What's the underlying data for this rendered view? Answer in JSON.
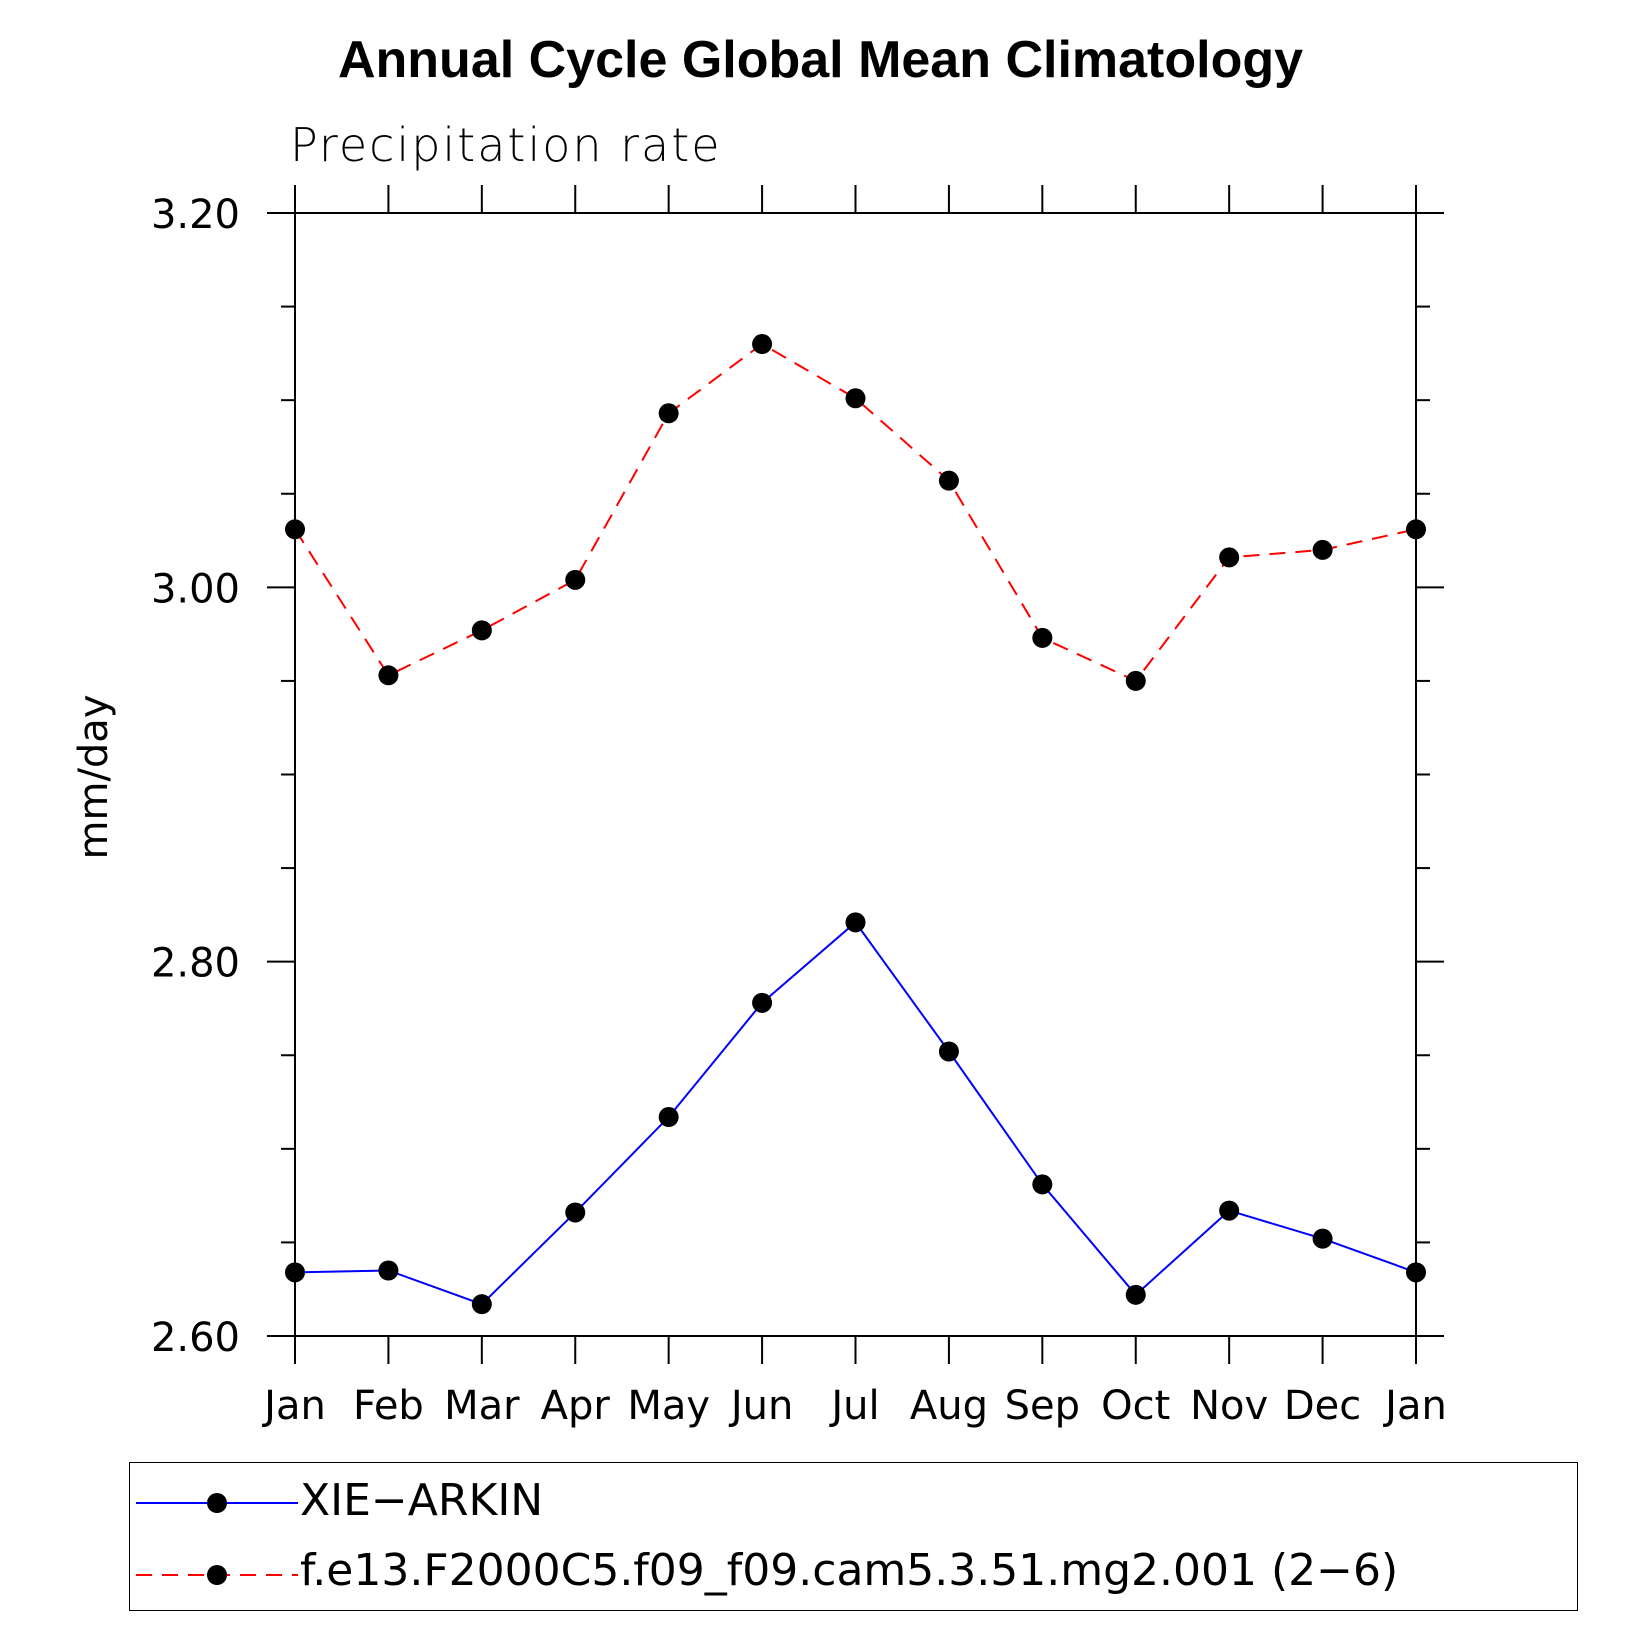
{
  "chart_data": {
    "type": "line",
    "title": "Annual Cycle Global Mean Climatology",
    "subtitle": "Precipitation rate",
    "xlabel": "",
    "ylabel": "mm/day",
    "categories": [
      "Jan",
      "Feb",
      "Mar",
      "Apr",
      "May",
      "Jun",
      "Jul",
      "Aug",
      "Sep",
      "Oct",
      "Nov",
      "Dec",
      "Jan"
    ],
    "ylim": [
      2.6,
      3.2
    ],
    "yticks": [
      "2.60",
      "2.80",
      "3.00",
      "3.20"
    ],
    "grid": false,
    "legend_position": "bottom",
    "series": [
      {
        "name": "XIE−ARKIN",
        "color": "#0000ff",
        "dash": "solid",
        "marker": "circle",
        "values": [
          2.634,
          2.635,
          2.617,
          2.666,
          2.717,
          2.778,
          2.821,
          2.752,
          2.681,
          2.622,
          2.667,
          2.652,
          2.634
        ]
      },
      {
        "name": "f.e13.F2000C5.f09_f09.cam5.3.51.mg2.001 (2−6)",
        "color": "#ff0000",
        "dash": "dashed",
        "marker": "circle",
        "values": [
          3.031,
          2.953,
          2.977,
          3.004,
          3.093,
          3.13,
          3.101,
          3.057,
          2.973,
          2.95,
          3.016,
          3.02,
          3.031
        ]
      }
    ]
  }
}
